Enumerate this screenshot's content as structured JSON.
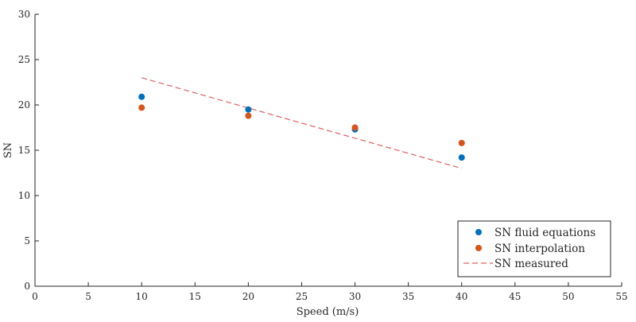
{
  "chart_data": {
    "type": "scatter",
    "xlabel": "Speed (m/s)",
    "ylabel": "SN",
    "xlim": [
      0,
      55
    ],
    "ylim": [
      0,
      30
    ],
    "xticks": [
      "0",
      "5",
      "10",
      "15",
      "20",
      "25",
      "30",
      "35",
      "40",
      "45",
      "50",
      "55"
    ],
    "yticks": [
      "0",
      "5",
      "10",
      "15",
      "20",
      "25",
      "30"
    ],
    "grid": false,
    "legend_position": "bottom-right",
    "series": [
      {
        "name": "SN fluid equations",
        "kind": "scatter",
        "color": "#0072BD",
        "x": [
          10,
          20,
          30,
          40
        ],
        "y": [
          20.9,
          19.5,
          17.3,
          14.2
        ]
      },
      {
        "name": "SN interpolation",
        "kind": "scatter",
        "color": "#D95319",
        "x": [
          10,
          20,
          30,
          40
        ],
        "y": [
          19.7,
          18.8,
          17.5,
          15.8
        ]
      },
      {
        "name": "SN measured",
        "kind": "dashed-line",
        "color": "#E06060",
        "x": [
          10,
          40
        ],
        "y": [
          23.0,
          13.0
        ]
      }
    ]
  }
}
